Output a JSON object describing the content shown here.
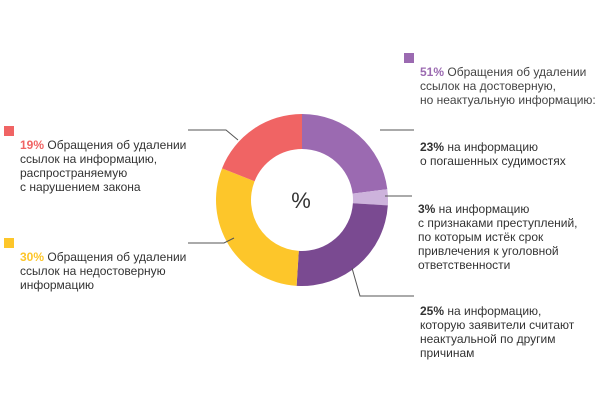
{
  "colors": {
    "red": "#f06464",
    "yellow": "#fdc62a",
    "purple_light": "#9b6ab1",
    "purple_pale": "#cdb3dc",
    "purple_dark": "#7a4a91",
    "line": "#555555"
  },
  "chart_data": {
    "type": "pie",
    "center_label": "%",
    "slices": [
      {
        "id": "s23",
        "value": 23,
        "color": "#9b6ab1"
      },
      {
        "id": "s3",
        "value": 3,
        "color": "#cdb3dc"
      },
      {
        "id": "s25",
        "value": 25,
        "color": "#7a4a91"
      },
      {
        "id": "s30",
        "value": 30,
        "color": "#fdc62a"
      },
      {
        "id": "s19",
        "value": 19,
        "color": "#f06464"
      }
    ],
    "labels": {
      "l51": {
        "pct": "51%",
        "text": " Обращения об удалении\nссылок на достоверную,\nно неактуальную информацию:"
      },
      "l19": {
        "pct": "19%",
        "text": " Обращения об удалении\nссылок на информацию,\nраспространяемую\nс нарушением закона"
      },
      "l30": {
        "pct": "30%",
        "text": " Обращения об удалении\nссылок на недостоверную\nинформацию"
      },
      "l23": {
        "pct": "23%",
        "text": " на информацию\nо погашенных судимостях"
      },
      "l3": {
        "pct": "3%",
        "text": " на информацию\nс признаками преступлений,\nпо которым истёк срок\nпривлечения к уголовной\nответственности"
      },
      "l25": {
        "pct": "25%",
        "text": " на информацию,\nкоторую заявители считают\nнеактуальной по другим\nпричинам"
      }
    }
  }
}
